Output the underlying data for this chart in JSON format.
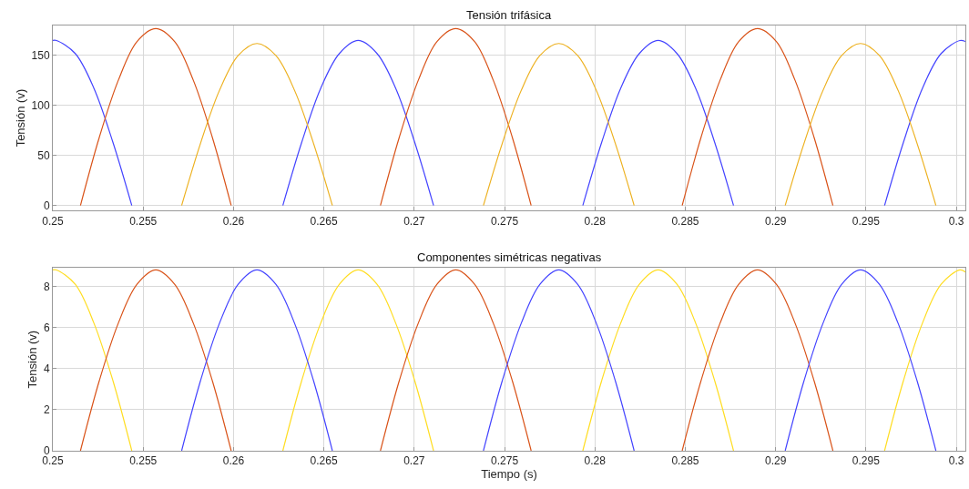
{
  "chart_data": [
    {
      "type": "line",
      "title": "Tensión trifásica",
      "ylabel": "Tensión (v)",
      "xlim": [
        0.25,
        0.3005
      ],
      "xticks": [
        0.25,
        0.255,
        0.26,
        0.265,
        0.27,
        0.275,
        0.28,
        0.285,
        0.29,
        0.295,
        0.3
      ],
      "ylim": [
        -5,
        180
      ],
      "yticks": [
        0,
        50,
        100,
        150
      ],
      "grid": true,
      "series": [
        {
          "color": "#4444ff",
          "x": [
            0.25,
            0.2502,
            0.25124,
            0.25228,
            0.25333,
            0.25437,
            0.2555,
            0.26273,
            0.26377,
            0.26482,
            0.26586,
            0.2669,
            0.26794,
            0.26898,
            0.27003,
            0.27107,
            0.275,
            0.27933,
            0.28037,
            0.28142,
            0.28246,
            0.2835,
            0.28454,
            0.28558,
            0.28663,
            0.28767,
            0.29,
            0.29603,
            0.29707,
            0.29812,
            0.29916,
            0.3002,
            0.3005
          ],
          "values": [
            165,
            165,
            152,
            117,
            63,
            0,
            null,
            0,
            63,
            117,
            152,
            165,
            152,
            117,
            63,
            0,
            null,
            0,
            63,
            117,
            152,
            165,
            152,
            117,
            63,
            0,
            null,
            0,
            63,
            117,
            152,
            165,
            164
          ]
        },
        {
          "color": "#d95319",
          "x": [
            0.25153,
            0.25257,
            0.25362,
            0.25466,
            0.2557,
            0.25674,
            0.25778,
            0.25883,
            0.25987,
            0.264,
            0.26813,
            0.26917,
            0.27022,
            0.27126,
            0.2723,
            0.27334,
            0.27438,
            0.27543,
            0.27647,
            0.28,
            0.28483,
            0.28587,
            0.28692,
            0.28796,
            0.289,
            0.29004,
            0.29108,
            0.29213,
            0.29317
          ],
          "values": [
            0,
            68,
            125,
            164,
            177,
            164,
            125,
            68,
            0,
            null,
            0,
            68,
            125,
            164,
            177,
            164,
            125,
            68,
            0,
            null,
            0,
            68,
            125,
            164,
            177,
            164,
            125,
            68,
            0
          ]
        },
        {
          "color": "#edb120",
          "x": [
            0.25713,
            0.25817,
            0.25922,
            0.26026,
            0.2613,
            0.26234,
            0.26338,
            0.26443,
            0.26547,
            0.27,
            0.27383,
            0.27487,
            0.27592,
            0.27696,
            0.278,
            0.27904,
            0.28008,
            0.28113,
            0.28217,
            0.286,
            0.29053,
            0.29157,
            0.29262,
            0.29366,
            0.2947,
            0.29574,
            0.29678,
            0.29783,
            0.29887
          ],
          "values": [
            0,
            62,
            115,
            150,
            162,
            150,
            115,
            62,
            0,
            null,
            0,
            62,
            115,
            150,
            162,
            150,
            115,
            62,
            0,
            null,
            0,
            62,
            115,
            150,
            162,
            150,
            115,
            62,
            0
          ]
        }
      ]
    },
    {
      "type": "line",
      "title": "Componentes simétricas negativas",
      "xlabel": "Tiempo (s)",
      "ylabel": "Tensión (v)",
      "xlim": [
        0.25,
        0.3005
      ],
      "xticks": [
        0.25,
        0.255,
        0.26,
        0.265,
        0.27,
        0.275,
        0.28,
        0.285,
        0.29,
        0.295,
        0.3
      ],
      "ylim": [
        0,
        8.9
      ],
      "yticks": [
        0,
        2,
        4,
        6,
        8
      ],
      "grid": true,
      "series": [
        {
          "color": "#ffdd22",
          "x": [
            0.25,
            0.2502,
            0.25124,
            0.25228,
            0.25333,
            0.25437,
            0.2555,
            0.26273,
            0.26377,
            0.26482,
            0.26586,
            0.2669,
            0.26794,
            0.26898,
            0.27003,
            0.27107,
            0.275,
            0.27933,
            0.28037,
            0.28142,
            0.28246,
            0.2835,
            0.28454,
            0.28558,
            0.28663,
            0.28767,
            0.29,
            0.29603,
            0.29707,
            0.29812,
            0.29916,
            0.3002,
            0.3005
          ],
          "values": [
            8.8,
            8.8,
            8.1,
            6.2,
            3.4,
            0,
            null,
            0,
            3.4,
            6.2,
            8.1,
            8.8,
            8.1,
            6.2,
            3.4,
            0,
            null,
            0,
            3.4,
            6.2,
            8.1,
            8.8,
            8.1,
            6.2,
            3.4,
            0,
            null,
            0,
            3.4,
            6.2,
            8.1,
            8.8,
            8.7
          ]
        },
        {
          "color": "#d95319",
          "x": [
            0.25153,
            0.25257,
            0.25362,
            0.25466,
            0.2557,
            0.25674,
            0.25778,
            0.25883,
            0.25987,
            0.264,
            0.26813,
            0.26917,
            0.27022,
            0.27126,
            0.2723,
            0.27334,
            0.27438,
            0.27543,
            0.27647,
            0.28,
            0.28483,
            0.28587,
            0.28692,
            0.28796,
            0.289,
            0.29004,
            0.29108,
            0.29213,
            0.29317
          ],
          "values": [
            0,
            3.4,
            6.2,
            8.1,
            8.8,
            8.1,
            6.2,
            3.4,
            0,
            null,
            0,
            3.4,
            6.2,
            8.1,
            8.8,
            8.1,
            6.2,
            3.4,
            0,
            null,
            0,
            3.4,
            6.2,
            8.1,
            8.8,
            8.1,
            6.2,
            3.4,
            0
          ]
        },
        {
          "color": "#4444ff",
          "x": [
            0.25713,
            0.25817,
            0.25922,
            0.26026,
            0.2613,
            0.26234,
            0.26338,
            0.26443,
            0.26547,
            0.27,
            0.27383,
            0.27487,
            0.27592,
            0.27696,
            0.278,
            0.27904,
            0.28008,
            0.28113,
            0.28217,
            0.286,
            0.29053,
            0.29157,
            0.29262,
            0.29366,
            0.2947,
            0.29574,
            0.29678,
            0.29783,
            0.29887
          ],
          "values": [
            0,
            3.4,
            6.2,
            8.1,
            8.8,
            8.1,
            6.2,
            3.4,
            0,
            null,
            0,
            3.4,
            6.2,
            8.1,
            8.8,
            8.1,
            6.2,
            3.4,
            0,
            null,
            0,
            3.4,
            6.2,
            8.1,
            8.8,
            8.1,
            6.2,
            3.4,
            0
          ]
        }
      ]
    }
  ]
}
